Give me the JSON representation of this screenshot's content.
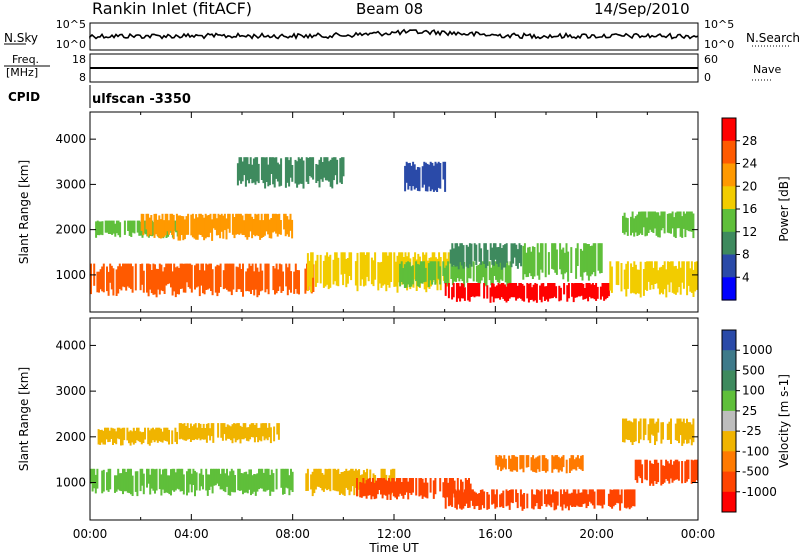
{
  "header": {
    "title": "Rankin Inlet (fitACF)",
    "beam": "Beam 08",
    "date": "14/Sep/2010"
  },
  "strips": {
    "nsky_label": "N.Sky",
    "nsearch_label": "N.Search",
    "nsky_ticks": [
      "10^5",
      "10^0"
    ],
    "nsearch_ticks": [
      "10^5",
      "10^0"
    ],
    "freq_label_1": "Freq.",
    "freq_label_2": "[MHz]",
    "freq_ticks": [
      "18",
      "8"
    ],
    "nave_label": "Nave",
    "nave_ticks": [
      "60",
      "0"
    ],
    "cpid_label": "CPID",
    "cpid_value": "ulfscan -3350"
  },
  "chart_data": [
    {
      "type": "heatmap",
      "name": "power",
      "ylabel": "Slant Range [km]",
      "xlabel": "Time UT",
      "xlim": [
        "00:00",
        "24:00"
      ],
      "ylim": [
        180,
        4600
      ],
      "y_ticks": [
        1000,
        2000,
        3000,
        4000
      ],
      "x_tick_labels": [
        "00:00",
        "04:00",
        "08:00",
        "12:00",
        "16:00",
        "20:00",
        "00:00"
      ],
      "colorbar": {
        "label": "Power [dB]",
        "ticks": [
          "28",
          "24",
          "20",
          "16",
          "12",
          "8",
          "4"
        ],
        "colors": [
          "#ff0000",
          "#ff5a00",
          "#ff9900",
          "#f2cc00",
          "#5fbf3a",
          "#3e8a5e",
          "#2a4aa8",
          "#0000ff"
        ]
      },
      "bands": [
        {
          "t0": 0.0,
          "t1": 8.8,
          "r0": 500,
          "r1": 1250,
          "level": 24
        },
        {
          "t0": 0.2,
          "t1": 3.5,
          "r0": 1800,
          "r1": 2200,
          "level": 12
        },
        {
          "t0": 2.0,
          "t1": 8.0,
          "r0": 1750,
          "r1": 2350,
          "level": 20
        },
        {
          "t0": 8.5,
          "t1": 14.2,
          "r0": 600,
          "r1": 1500,
          "level": 16
        },
        {
          "t0": 12.2,
          "t1": 16.6,
          "r0": 700,
          "r1": 1300,
          "level": 12
        },
        {
          "t0": 14.0,
          "t1": 20.5,
          "r0": 380,
          "r1": 820,
          "level": 28
        },
        {
          "t0": 14.2,
          "t1": 17.0,
          "r0": 1100,
          "r1": 1700,
          "level": 8
        },
        {
          "t0": 17.0,
          "t1": 20.2,
          "r0": 850,
          "r1": 1700,
          "level": 12
        },
        {
          "t0": 20.5,
          "t1": 24.0,
          "r0": 500,
          "r1": 1300,
          "level": 16
        },
        {
          "t0": 21.0,
          "t1": 23.8,
          "r0": 1800,
          "r1": 2400,
          "level": 12
        },
        {
          "t0": 5.8,
          "t1": 10.0,
          "r0": 2900,
          "r1": 3600,
          "level": 8
        },
        {
          "t0": 12.4,
          "t1": 14.0,
          "r0": 2800,
          "r1": 3500,
          "level": 4
        }
      ]
    },
    {
      "type": "heatmap",
      "name": "velocity",
      "ylabel": "Slant Range [km]",
      "xlabel": "Time UT",
      "xlim": [
        "00:00",
        "24:00"
      ],
      "ylim": [
        180,
        4600
      ],
      "y_ticks": [
        1000,
        2000,
        3000,
        4000
      ],
      "x_tick_labels": [
        "00:00",
        "04:00",
        "08:00",
        "12:00",
        "16:00",
        "20:00",
        "00:00"
      ],
      "colorbar": {
        "label": "Velocity [m s-1]",
        "ticks": [
          "1000",
          "500",
          "100",
          "25",
          "-25",
          "-100",
          "-500",
          "-1000"
        ],
        "colors": [
          "#2a4aa8",
          "#3e7a8a",
          "#3e8a5e",
          "#5fbf3a",
          "#bdbdbd",
          "#f0b400",
          "#ff7a00",
          "#ff4400",
          "#ff0000"
        ]
      },
      "bands": [
        {
          "t0": 0.0,
          "t1": 8.0,
          "r0": 700,
          "r1": 1300,
          "level": "100"
        },
        {
          "t0": 0.3,
          "t1": 3.5,
          "r0": 1800,
          "r1": 2200,
          "level": "-25"
        },
        {
          "t0": 3.5,
          "t1": 7.5,
          "r0": 1850,
          "r1": 2300,
          "level": "-25"
        },
        {
          "t0": 8.5,
          "t1": 12.0,
          "r0": 700,
          "r1": 1300,
          "level": "-25"
        },
        {
          "t0": 10.5,
          "t1": 15.0,
          "r0": 600,
          "r1": 1100,
          "level": "-500"
        },
        {
          "t0": 14.0,
          "t1": 21.5,
          "r0": 380,
          "r1": 850,
          "level": "-500"
        },
        {
          "t0": 21.5,
          "t1": 24.0,
          "r0": 900,
          "r1": 1500,
          "level": "-500"
        },
        {
          "t0": 16.0,
          "t1": 19.5,
          "r0": 1200,
          "r1": 1600,
          "level": "-100"
        },
        {
          "t0": 21.0,
          "t1": 23.8,
          "r0": 1800,
          "r1": 2400,
          "level": "-25"
        }
      ]
    }
  ]
}
